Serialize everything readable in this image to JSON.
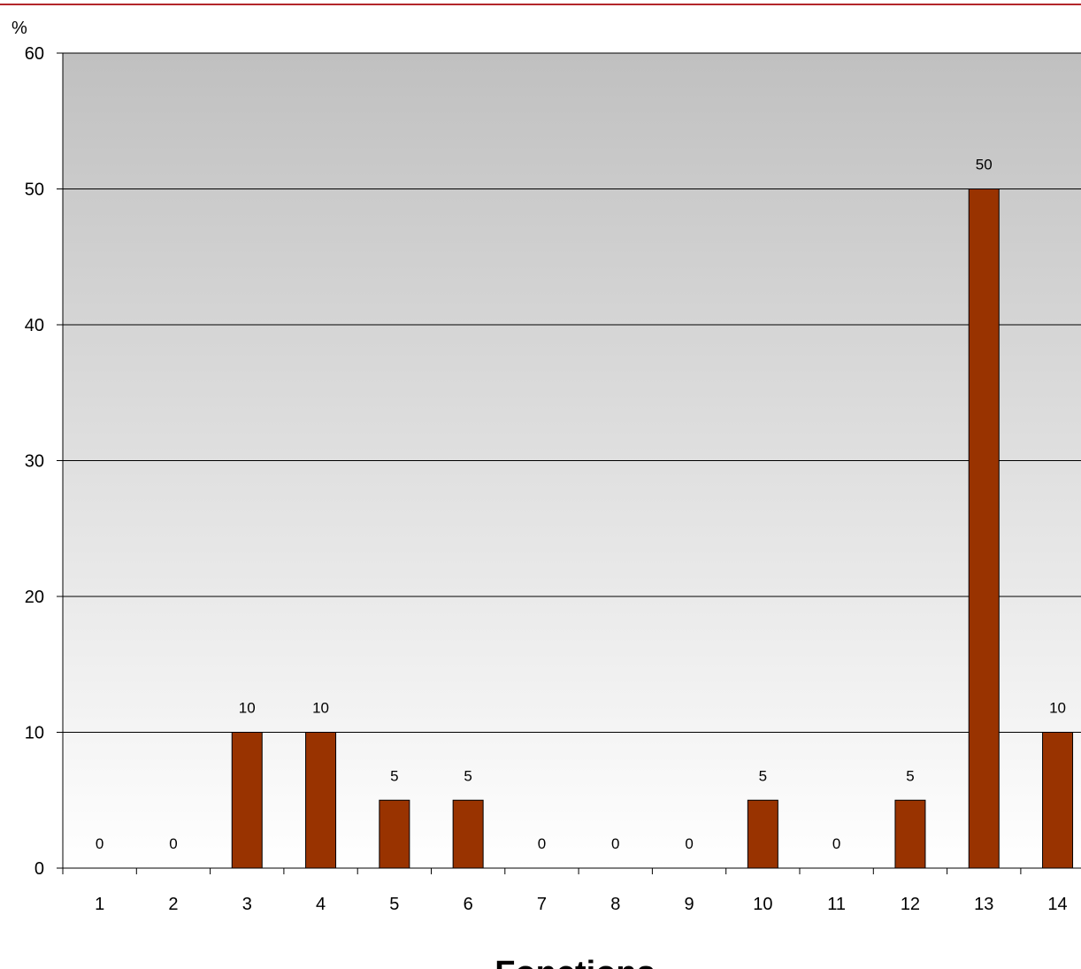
{
  "chart_data": {
    "type": "bar",
    "ylabel": "%",
    "xlabel": "Fonctions",
    "categories": [
      "1",
      "2",
      "3",
      "4",
      "5",
      "6",
      "7",
      "8",
      "9",
      "10",
      "11",
      "12",
      "13",
      "14"
    ],
    "values": [
      0,
      0,
      10,
      10,
      5,
      5,
      0,
      0,
      0,
      5,
      0,
      5,
      50,
      10
    ],
    "data_labels": [
      "0",
      "0",
      "10",
      "10",
      "5",
      "5",
      "0",
      "0",
      "0",
      "5",
      "0",
      "5",
      "50",
      "10"
    ],
    "ylim": [
      0,
      60
    ],
    "yticks": [
      0,
      10,
      20,
      30,
      40,
      50,
      60
    ],
    "grid": true,
    "legend": false,
    "colors": {
      "bar": "#993300",
      "bar_outline": "#000000",
      "plot_bg_top": "#c0c0c0",
      "plot_bg_bottom": "#ffffff",
      "gridline": "#000000",
      "top_rule": "#b3262b"
    }
  }
}
